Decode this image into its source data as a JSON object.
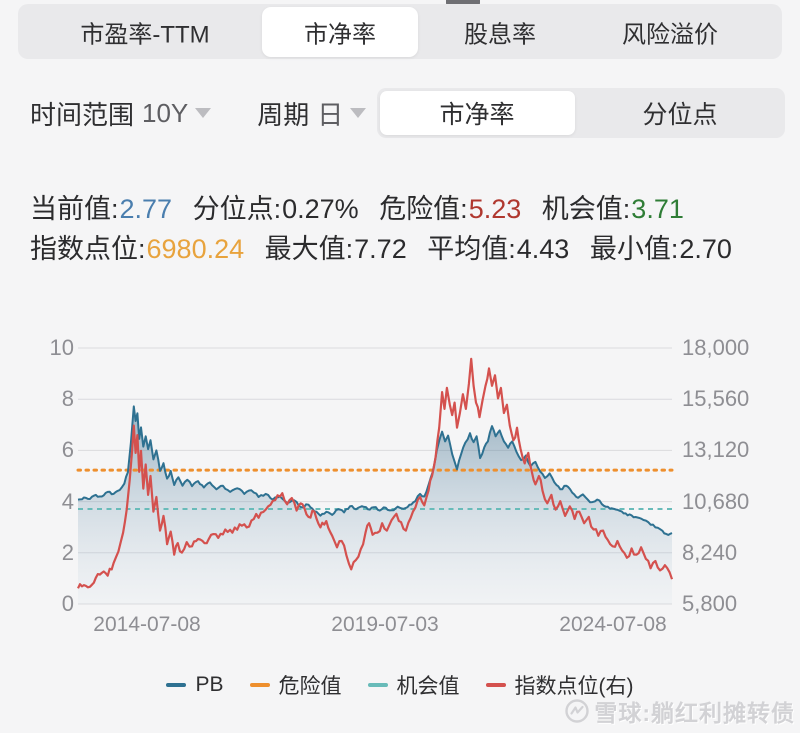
{
  "page": {
    "bg": "#f5f5f6",
    "notch": true
  },
  "top_tabs": {
    "items": [
      {
        "label": "市盈率-TTM",
        "selected": false
      },
      {
        "label": "市净率",
        "selected": true
      },
      {
        "label": "股息率",
        "selected": false
      },
      {
        "label": "风险溢价",
        "selected": false
      }
    ]
  },
  "controls": {
    "time_range_label": "时间范围",
    "time_range_value": "10Y",
    "period_label": "周期",
    "period_value": "日",
    "view_tabs": [
      {
        "label": "市净率",
        "selected": true
      },
      {
        "label": "分位点",
        "selected": false
      }
    ]
  },
  "stats": {
    "line1": [
      {
        "label": "当前值:",
        "value": "2.77",
        "color": "#4a7eae"
      },
      {
        "label": "分位点:",
        "value": "0.27%",
        "color": "#2b2b2d"
      },
      {
        "label": "危险值:",
        "value": "5.23",
        "color": "#b0382f"
      },
      {
        "label": "机会值:",
        "value": "3.71",
        "color": "#2f7d36"
      }
    ],
    "line2": [
      {
        "label": "指数点位:",
        "value": "6980.24",
        "color": "#e8a33d"
      },
      {
        "label": "最大值:",
        "value": "7.72",
        "color": "#2b2b2d"
      },
      {
        "label": "平均值:",
        "value": "4.43",
        "color": "#2b2b2d"
      },
      {
        "label": "最小值:",
        "value": "2.70",
        "color": "#2b2b2d"
      }
    ]
  },
  "chart_data": {
    "type": "line",
    "grid": true,
    "legend_position": "bottom",
    "y_left": {
      "label": "PB",
      "min": 0,
      "max": 10,
      "ticks": [
        "10",
        "8",
        "6",
        "4",
        "2",
        "0"
      ]
    },
    "y_right": {
      "label": "指数点位",
      "min": 5800,
      "max": 18000,
      "ticks": [
        "18,000",
        "15,560",
        "13,120",
        "10,680",
        "8,240",
        "5,800"
      ]
    },
    "x_ticks": [
      "2014-07-08",
      "2019-07-03",
      "2024-07-08"
    ],
    "danger_value": 5.23,
    "opportunity_value": 3.71,
    "colors": {
      "pb": "#2e7191",
      "danger": "#ee8f2d",
      "opportunity": "#68bbb9",
      "index": "#d4514e",
      "grid": "#dadadd"
    },
    "legend": [
      {
        "label": "PB",
        "color": "#2e7191"
      },
      {
        "label": "危险值",
        "color": "#ee8f2d"
      },
      {
        "label": "机会值",
        "color": "#68bbb9"
      },
      {
        "label": "指数点位(右)",
        "color": "#d4514e"
      }
    ],
    "series": [
      {
        "name": "PB",
        "axis": "left",
        "color": "#2e7191",
        "fill": true,
        "jitter": 0.06,
        "points": [
          [
            0,
            4.08
          ],
          [
            0.01,
            4.16
          ],
          [
            0.02,
            4.1
          ],
          [
            0.03,
            4.26
          ],
          [
            0.04,
            4.2
          ],
          [
            0.05,
            4.38
          ],
          [
            0.06,
            4.3
          ],
          [
            0.07,
            4.45
          ],
          [
            0.078,
            4.7
          ],
          [
            0.084,
            5.15
          ],
          [
            0.089,
            6.3
          ],
          [
            0.094,
            7.72
          ],
          [
            0.097,
            7.15
          ],
          [
            0.1,
            7.45
          ],
          [
            0.103,
            6.45
          ],
          [
            0.106,
            6.9
          ],
          [
            0.11,
            6.15
          ],
          [
            0.114,
            6.55
          ],
          [
            0.118,
            6.05
          ],
          [
            0.122,
            6.4
          ],
          [
            0.127,
            5.65
          ],
          [
            0.132,
            6.0
          ],
          [
            0.138,
            5.2
          ],
          [
            0.144,
            5.5
          ],
          [
            0.15,
            4.9
          ],
          [
            0.156,
            5.2
          ],
          [
            0.162,
            4.65
          ],
          [
            0.169,
            4.95
          ],
          [
            0.176,
            4.62
          ],
          [
            0.184,
            4.85
          ],
          [
            0.192,
            4.6
          ],
          [
            0.202,
            4.8
          ],
          [
            0.212,
            4.55
          ],
          [
            0.222,
            4.75
          ],
          [
            0.233,
            4.48
          ],
          [
            0.244,
            4.62
          ],
          [
            0.256,
            4.38
          ],
          [
            0.268,
            4.52
          ],
          [
            0.28,
            4.3
          ],
          [
            0.292,
            4.44
          ],
          [
            0.304,
            4.18
          ],
          [
            0.316,
            4.3
          ],
          [
            0.328,
            4.08
          ],
          [
            0.34,
            4.2
          ],
          [
            0.352,
            3.95
          ],
          [
            0.364,
            4.05
          ],
          [
            0.376,
            3.78
          ],
          [
            0.388,
            3.88
          ],
          [
            0.398,
            3.62
          ],
          [
            0.408,
            3.45
          ],
          [
            0.418,
            3.6
          ],
          [
            0.428,
            3.48
          ],
          [
            0.438,
            3.7
          ],
          [
            0.448,
            3.58
          ],
          [
            0.458,
            3.82
          ],
          [
            0.468,
            3.7
          ],
          [
            0.478,
            3.82
          ],
          [
            0.488,
            3.7
          ],
          [
            0.498,
            3.78
          ],
          [
            0.508,
            3.65
          ],
          [
            0.518,
            3.76
          ],
          [
            0.528,
            3.66
          ],
          [
            0.538,
            3.8
          ],
          [
            0.548,
            3.72
          ],
          [
            0.558,
            3.88
          ],
          [
            0.568,
            4.02
          ],
          [
            0.576,
            4.3
          ],
          [
            0.583,
            4.2
          ],
          [
            0.59,
            4.65
          ],
          [
            0.597,
            5.15
          ],
          [
            0.604,
            6.0
          ],
          [
            0.609,
            6.45
          ],
          [
            0.613,
            6.73
          ],
          [
            0.618,
            6.35
          ],
          [
            0.623,
            6.58
          ],
          [
            0.63,
            5.85
          ],
          [
            0.638,
            5.26
          ],
          [
            0.645,
            5.85
          ],
          [
            0.652,
            6.3
          ],
          [
            0.66,
            6.67
          ],
          [
            0.666,
            6.32
          ],
          [
            0.671,
            6.55
          ],
          [
            0.677,
            5.7
          ],
          [
            0.684,
            6.12
          ],
          [
            0.69,
            6.35
          ],
          [
            0.697,
            6.95
          ],
          [
            0.703,
            6.55
          ],
          [
            0.71,
            6.78
          ],
          [
            0.717,
            6.35
          ],
          [
            0.724,
            6.1
          ],
          [
            0.731,
            6.35
          ],
          [
            0.738,
            5.95
          ],
          [
            0.746,
            5.62
          ],
          [
            0.754,
            5.8
          ],
          [
            0.762,
            5.38
          ],
          [
            0.77,
            5.55
          ],
          [
            0.778,
            5.18
          ],
          [
            0.786,
            4.92
          ],
          [
            0.794,
            5.1
          ],
          [
            0.802,
            4.75
          ],
          [
            0.812,
            4.48
          ],
          [
            0.822,
            4.62
          ],
          [
            0.832,
            4.35
          ],
          [
            0.842,
            4.15
          ],
          [
            0.85,
            4.28
          ],
          [
            0.858,
            4.08
          ],
          [
            0.866,
            3.98
          ],
          [
            0.874,
            4.08
          ],
          [
            0.882,
            3.9
          ],
          [
            0.892,
            3.8
          ],
          [
            0.902,
            3.72
          ],
          [
            0.912,
            3.64
          ],
          [
            0.922,
            3.54
          ],
          [
            0.932,
            3.46
          ],
          [
            0.942,
            3.38
          ],
          [
            0.952,
            3.28
          ],
          [
            0.96,
            3.2
          ],
          [
            0.968,
            3.1
          ],
          [
            0.976,
            2.98
          ],
          [
            0.984,
            2.86
          ],
          [
            0.99,
            2.74
          ],
          [
            0.994,
            2.7
          ],
          [
            1,
            2.77
          ]
        ]
      },
      {
        "name": "指数点位",
        "axis": "right",
        "color": "#d4514e",
        "fill": false,
        "jitter": 170,
        "points": [
          [
            0,
            6550
          ],
          [
            0.01,
            6700
          ],
          [
            0.02,
            6620
          ],
          [
            0.03,
            7050
          ],
          [
            0.04,
            7280
          ],
          [
            0.05,
            7150
          ],
          [
            0.06,
            7750
          ],
          [
            0.068,
            8300
          ],
          [
            0.076,
            9200
          ],
          [
            0.082,
            10300
          ],
          [
            0.087,
            11700
          ],
          [
            0.091,
            13100
          ],
          [
            0.094,
            14300
          ],
          [
            0.097,
            13000
          ],
          [
            0.1,
            13850
          ],
          [
            0.103,
            12100
          ],
          [
            0.106,
            13100
          ],
          [
            0.11,
            11300
          ],
          [
            0.114,
            12450
          ],
          [
            0.118,
            11000
          ],
          [
            0.122,
            11900
          ],
          [
            0.127,
            10200
          ],
          [
            0.132,
            10900
          ],
          [
            0.138,
            9300
          ],
          [
            0.144,
            10000
          ],
          [
            0.15,
            8650
          ],
          [
            0.156,
            9250
          ],
          [
            0.162,
            8150
          ],
          [
            0.168,
            8700
          ],
          [
            0.175,
            8250
          ],
          [
            0.183,
            8750
          ],
          [
            0.192,
            8550
          ],
          [
            0.202,
            8900
          ],
          [
            0.213,
            8700
          ],
          [
            0.224,
            9100
          ],
          [
            0.236,
            8950
          ],
          [
            0.248,
            9350
          ],
          [
            0.26,
            9200
          ],
          [
            0.272,
            9600
          ],
          [
            0.284,
            9450
          ],
          [
            0.296,
            9850
          ],
          [
            0.308,
            10150
          ],
          [
            0.32,
            10450
          ],
          [
            0.332,
            10750
          ],
          [
            0.344,
            11080
          ],
          [
            0.352,
            10550
          ],
          [
            0.36,
            10850
          ],
          [
            0.368,
            10250
          ],
          [
            0.378,
            10550
          ],
          [
            0.388,
            9950
          ],
          [
            0.398,
            10200
          ],
          [
            0.408,
            9450
          ],
          [
            0.418,
            9750
          ],
          [
            0.428,
            9050
          ],
          [
            0.436,
            8500
          ],
          [
            0.444,
            8800
          ],
          [
            0.452,
            8100
          ],
          [
            0.46,
            7450
          ],
          [
            0.468,
            7900
          ],
          [
            0.476,
            8400
          ],
          [
            0.484,
            9200
          ],
          [
            0.49,
            9650
          ],
          [
            0.496,
            9100
          ],
          [
            0.504,
            9200
          ],
          [
            0.512,
            9650
          ],
          [
            0.52,
            9300
          ],
          [
            0.528,
            9800
          ],
          [
            0.536,
            10100
          ],
          [
            0.544,
            9700
          ],
          [
            0.552,
            9300
          ],
          [
            0.56,
            9900
          ],
          [
            0.568,
            10400
          ],
          [
            0.576,
            10900
          ],
          [
            0.583,
            10500
          ],
          [
            0.59,
            11200
          ],
          [
            0.596,
            11900
          ],
          [
            0.602,
            12800
          ],
          [
            0.608,
            14200
          ],
          [
            0.613,
            15900
          ],
          [
            0.617,
            15100
          ],
          [
            0.621,
            16100
          ],
          [
            0.626,
            15300
          ],
          [
            0.63,
            14800
          ],
          [
            0.634,
            15400
          ],
          [
            0.638,
            14200
          ],
          [
            0.643,
            14900
          ],
          [
            0.648,
            15800
          ],
          [
            0.653,
            15100
          ],
          [
            0.658,
            16300
          ],
          [
            0.662,
            17480
          ],
          [
            0.666,
            16200
          ],
          [
            0.67,
            15400
          ],
          [
            0.676,
            14700
          ],
          [
            0.681,
            15500
          ],
          [
            0.686,
            16200
          ],
          [
            0.692,
            17030
          ],
          [
            0.697,
            16200
          ],
          [
            0.702,
            16700
          ],
          [
            0.707,
            15600
          ],
          [
            0.712,
            16100
          ],
          [
            0.717,
            14900
          ],
          [
            0.722,
            15300
          ],
          [
            0.727,
            14300
          ],
          [
            0.733,
            13600
          ],
          [
            0.739,
            14200
          ],
          [
            0.745,
            13200
          ],
          [
            0.752,
            12500
          ],
          [
            0.758,
            13000
          ],
          [
            0.764,
            12100
          ],
          [
            0.77,
            11500
          ],
          [
            0.776,
            11900
          ],
          [
            0.782,
            11200
          ],
          [
            0.79,
            10600
          ],
          [
            0.797,
            11000
          ],
          [
            0.804,
            10300
          ],
          [
            0.812,
            10700
          ],
          [
            0.82,
            10000
          ],
          [
            0.828,
            10450
          ],
          [
            0.836,
            9850
          ],
          [
            0.844,
            10200
          ],
          [
            0.852,
            9650
          ],
          [
            0.86,
            9950
          ],
          [
            0.868,
            9350
          ],
          [
            0.876,
            9050
          ],
          [
            0.884,
            9300
          ],
          [
            0.892,
            8850
          ],
          [
            0.9,
            8550
          ],
          [
            0.908,
            8800
          ],
          [
            0.916,
            8350
          ],
          [
            0.924,
            8000
          ],
          [
            0.932,
            8450
          ],
          [
            0.94,
            8150
          ],
          [
            0.948,
            8500
          ],
          [
            0.956,
            7950
          ],
          [
            0.964,
            7500
          ],
          [
            0.972,
            7850
          ],
          [
            0.98,
            7400
          ],
          [
            0.988,
            7650
          ],
          [
            1,
            6980
          ]
        ]
      }
    ]
  },
  "watermark": {
    "text": "雪球:躺红利摊转债"
  }
}
